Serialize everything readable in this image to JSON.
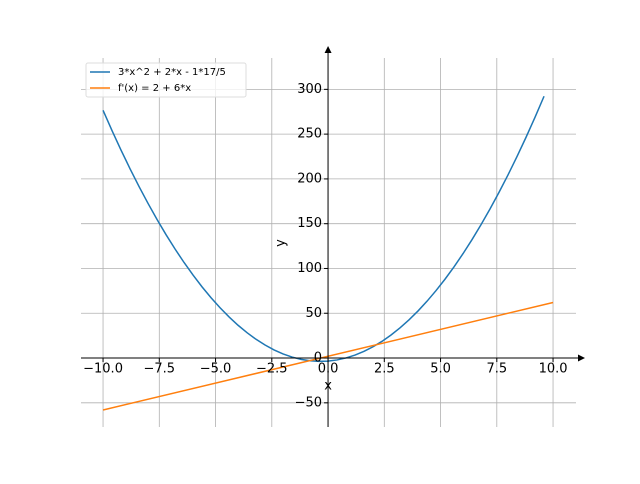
{
  "chart_data": {
    "type": "line",
    "x_label": "x",
    "y_label": "y",
    "xlim": [
      -10.98,
      11.02
    ],
    "ylim": [
      -77,
      335
    ],
    "xticks": [
      {
        "value": -10,
        "label": "−10.0"
      },
      {
        "value": -7.5,
        "label": "−7.5"
      },
      {
        "value": -5,
        "label": "−5.0"
      },
      {
        "value": -2.5,
        "label": "−2.5"
      },
      {
        "value": 0,
        "label": "0.0"
      },
      {
        "value": 2.5,
        "label": "2.5"
      },
      {
        "value": 5,
        "label": "5.0"
      },
      {
        "value": 7.5,
        "label": "7.5"
      },
      {
        "value": 10,
        "label": "10.0"
      }
    ],
    "yticks": [
      {
        "value": -50,
        "label": "−50"
      },
      0,
      50,
      100,
      150,
      200,
      250,
      300
    ],
    "grid": true,
    "legend": "upper left",
    "series": [
      {
        "name": "3*x^2 + 2*x - 1*17/5",
        "color": "#1f77b4",
        "x": [
          -10,
          -9.6,
          -9.2,
          -8.8,
          -8.4,
          -8,
          -7.6,
          -7.2,
          -6.8,
          -6.4,
          -6,
          -5.6,
          -5.2,
          -4.8,
          -4.4,
          -4,
          -3.6,
          -3.2,
          -2.8,
          -2.4,
          -2,
          -1.6,
          -1.2,
          -0.8,
          -0.4,
          0,
          0.4,
          0.8,
          1.2,
          1.6,
          2,
          2.4,
          2.8,
          3.2,
          3.6,
          4,
          4.4,
          4.8,
          5.2,
          5.6,
          6,
          6.4,
          6.8,
          7.2,
          7.6,
          8,
          8.4,
          8.8,
          9.2,
          9.6
        ],
        "values": [
          276.6,
          253.88,
          232.12,
          211.32,
          191.48,
          172.6,
          154.68,
          137.72,
          121.72,
          106.68,
          92.6,
          79.48,
          67.32,
          56.12,
          45.88,
          36.6,
          28.28,
          20.92,
          14.52,
          9.08,
          4.6,
          1.08,
          -1.48,
          -3.08,
          -3.72,
          -3.4,
          -2.12,
          0.12,
          3.32,
          7.48,
          12.6,
          18.68,
          25.72,
          33.72,
          42.68,
          52.6,
          63.48,
          75.32,
          88.12,
          101.88,
          116.6,
          132.28,
          148.92,
          166.52,
          185.08,
          204.6,
          225.08,
          246.52,
          268.92,
          292.28
        ]
      },
      {
        "name": "f'(x) = 2 + 6*x",
        "color": "#ff7f0e",
        "x": [
          -10,
          10
        ],
        "values": [
          -58,
          62
        ]
      }
    ]
  }
}
